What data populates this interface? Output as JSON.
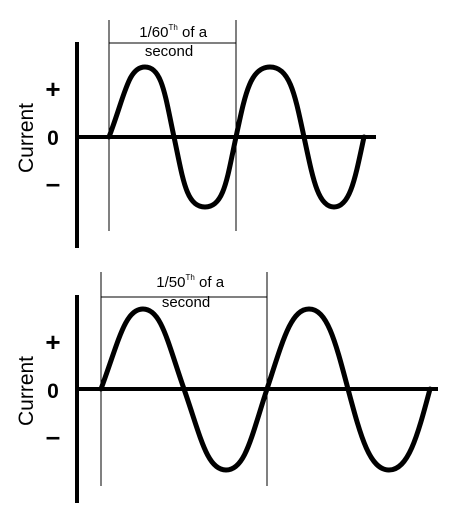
{
  "colors": {
    "ink": "#000000",
    "background": "#ffffff"
  },
  "panels": [
    {
      "axis_label": "Current",
      "plus": "+",
      "zero": "0",
      "minus": "–",
      "period_label_line1_pre": "1/60",
      "period_label_sup": "Th",
      "period_label_line1_post": " of a",
      "period_label_line2": "second",
      "cycles_shown": 2,
      "frequency_hz": 60
    },
    {
      "axis_label": "Current",
      "plus": "+",
      "zero": "0",
      "minus": "–",
      "period_label_line1_pre": "1/50",
      "period_label_sup": "Th",
      "period_label_line1_post": " of a",
      "period_label_line2": "second",
      "cycles_shown": 2,
      "frequency_hz": 50
    }
  ]
}
